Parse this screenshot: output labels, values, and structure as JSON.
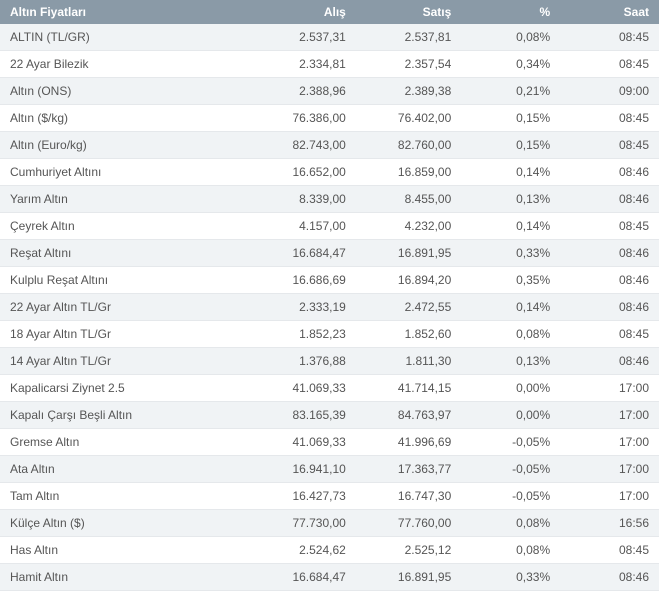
{
  "header": {
    "name": "Altın Fiyatları",
    "buy": "Alış",
    "sell": "Satış",
    "pct": "%",
    "time": "Saat"
  },
  "rows": [
    {
      "name": "ALTIN (TL/GR)",
      "buy": "2.537,31",
      "sell": "2.537,81",
      "pct": "0,08%",
      "time": "08:45"
    },
    {
      "name": "22 Ayar Bilezik",
      "buy": "2.334,81",
      "sell": "2.357,54",
      "pct": "0,34%",
      "time": "08:45"
    },
    {
      "name": "Altın (ONS)",
      "buy": "2.388,96",
      "sell": "2.389,38",
      "pct": "0,21%",
      "time": "09:00"
    },
    {
      "name": "Altın ($/kg)",
      "buy": "76.386,00",
      "sell": "76.402,00",
      "pct": "0,15%",
      "time": "08:45"
    },
    {
      "name": "Altın (Euro/kg)",
      "buy": "82.743,00",
      "sell": "82.760,00",
      "pct": "0,15%",
      "time": "08:45"
    },
    {
      "name": "Cumhuriyet Altını",
      "buy": "16.652,00",
      "sell": "16.859,00",
      "pct": "0,14%",
      "time": "08:46"
    },
    {
      "name": "Yarım Altın",
      "buy": "8.339,00",
      "sell": "8.455,00",
      "pct": "0,13%",
      "time": "08:46"
    },
    {
      "name": "Çeyrek Altın",
      "buy": "4.157,00",
      "sell": "4.232,00",
      "pct": "0,14%",
      "time": "08:45"
    },
    {
      "name": "Reşat Altını",
      "buy": "16.684,47",
      "sell": "16.891,95",
      "pct": "0,33%",
      "time": "08:46"
    },
    {
      "name": "Kulplu Reşat Altını",
      "buy": "16.686,69",
      "sell": "16.894,20",
      "pct": "0,35%",
      "time": "08:46"
    },
    {
      "name": "22 Ayar Altın TL/Gr",
      "buy": "2.333,19",
      "sell": "2.472,55",
      "pct": "0,14%",
      "time": "08:46"
    },
    {
      "name": "18 Ayar Altın TL/Gr",
      "buy": "1.852,23",
      "sell": "1.852,60",
      "pct": "0,08%",
      "time": "08:45"
    },
    {
      "name": "14 Ayar Altın TL/Gr",
      "buy": "1.376,88",
      "sell": "1.811,30",
      "pct": "0,13%",
      "time": "08:46"
    },
    {
      "name": "Kapalicarsi Ziynet 2.5",
      "buy": "41.069,33",
      "sell": "41.714,15",
      "pct": "0,00%",
      "time": "17:00"
    },
    {
      "name": "Kapalı Çarşı Beşli Altın",
      "buy": "83.165,39",
      "sell": "84.763,97",
      "pct": "0,00%",
      "time": "17:00"
    },
    {
      "name": "Gremse Altın",
      "buy": "41.069,33",
      "sell": "41.996,69",
      "pct": "-0,05%",
      "time": "17:00"
    },
    {
      "name": "Ata Altın",
      "buy": "16.941,10",
      "sell": "17.363,77",
      "pct": "-0,05%",
      "time": "17:00"
    },
    {
      "name": "Tam Altın",
      "buy": "16.427,73",
      "sell": "16.747,30",
      "pct": "-0,05%",
      "time": "17:00"
    },
    {
      "name": "Külçe Altın ($)",
      "buy": "77.730,00",
      "sell": "77.760,00",
      "pct": "0,08%",
      "time": "16:56"
    },
    {
      "name": "Has Altın",
      "buy": "2.524,62",
      "sell": "2.525,12",
      "pct": "0,08%",
      "time": "08:45"
    },
    {
      "name": "Hamit Altın",
      "buy": "16.684,47",
      "sell": "16.891,95",
      "pct": "0,33%",
      "time": "08:46"
    }
  ],
  "colors": {
    "header_bg": "#8a9aa7",
    "header_text": "#ffffff",
    "row_odd_bg": "#f0f3f5",
    "row_even_bg": "#ffffff",
    "cell_text": "#555555",
    "border": "#e5e8eb"
  }
}
